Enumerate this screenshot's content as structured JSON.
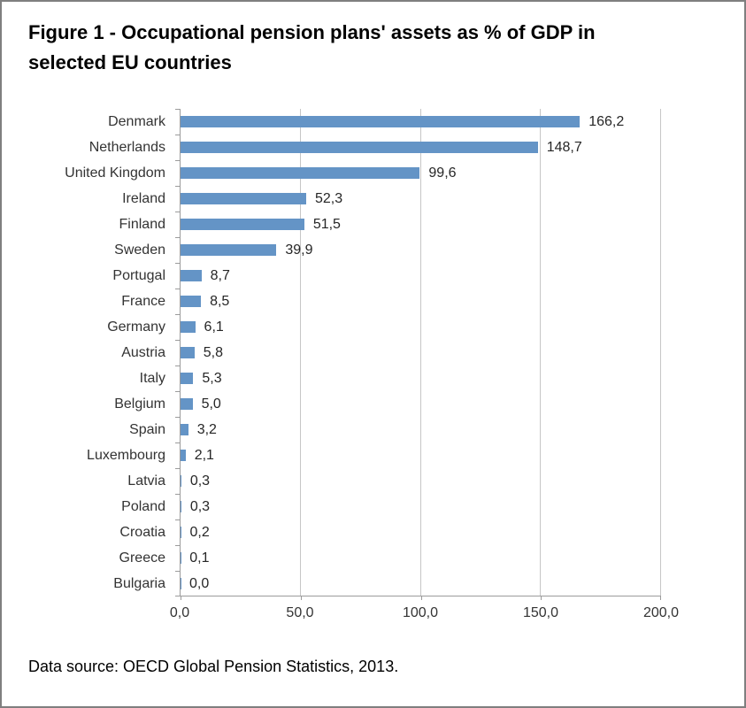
{
  "header": {
    "title_line1": "Figure 1 - Occupational pension plans' assets as % of GDP in",
    "title_line2": "selected EU countries"
  },
  "footer": {
    "source": "Data source: OECD Global Pension Statistics, 2013."
  },
  "chart_data": {
    "type": "bar",
    "orientation": "horizontal",
    "title": "Figure 1 - Occupational pension plans' assets as % of GDP in selected EU countries",
    "categories": [
      "Denmark",
      "Netherlands",
      "United Kingdom",
      "Ireland",
      "Finland",
      "Sweden",
      "Portugal",
      "France",
      "Germany",
      "Austria",
      "Italy",
      "Belgium",
      "Spain",
      "Luxembourg",
      "Latvia",
      "Poland",
      "Croatia",
      "Greece",
      "Bulgaria"
    ],
    "values": [
      166.2,
      148.7,
      99.6,
      52.3,
      51.5,
      39.9,
      8.7,
      8.5,
      6.1,
      5.8,
      5.3,
      5.0,
      3.2,
      2.1,
      0.3,
      0.3,
      0.2,
      0.1,
      0.0
    ],
    "value_labels": [
      "166,2",
      "148,7",
      "99,6",
      "52,3",
      "51,5",
      "39,9",
      "8,7",
      "8,5",
      "6,1",
      "5,8",
      "5,3",
      "5,0",
      "3,2",
      "2,1",
      "0,3",
      "0,3",
      "0,2",
      "0,1",
      "0,0"
    ],
    "x_ticks": [
      "0,0",
      "50,0",
      "100,0",
      "150,0",
      "200,0"
    ],
    "xlim": [
      0,
      200
    ],
    "xlabel": "",
    "ylabel": "",
    "grid": true,
    "legend": "none",
    "data_labels": true,
    "colors": {
      "bar": "#6494c6",
      "grid": "#c6c6c6",
      "axis": "#9b9b9b",
      "panel_border": "#7f7f7f"
    },
    "source": "Data source: OECD Global Pension Statistics, 2013."
  }
}
